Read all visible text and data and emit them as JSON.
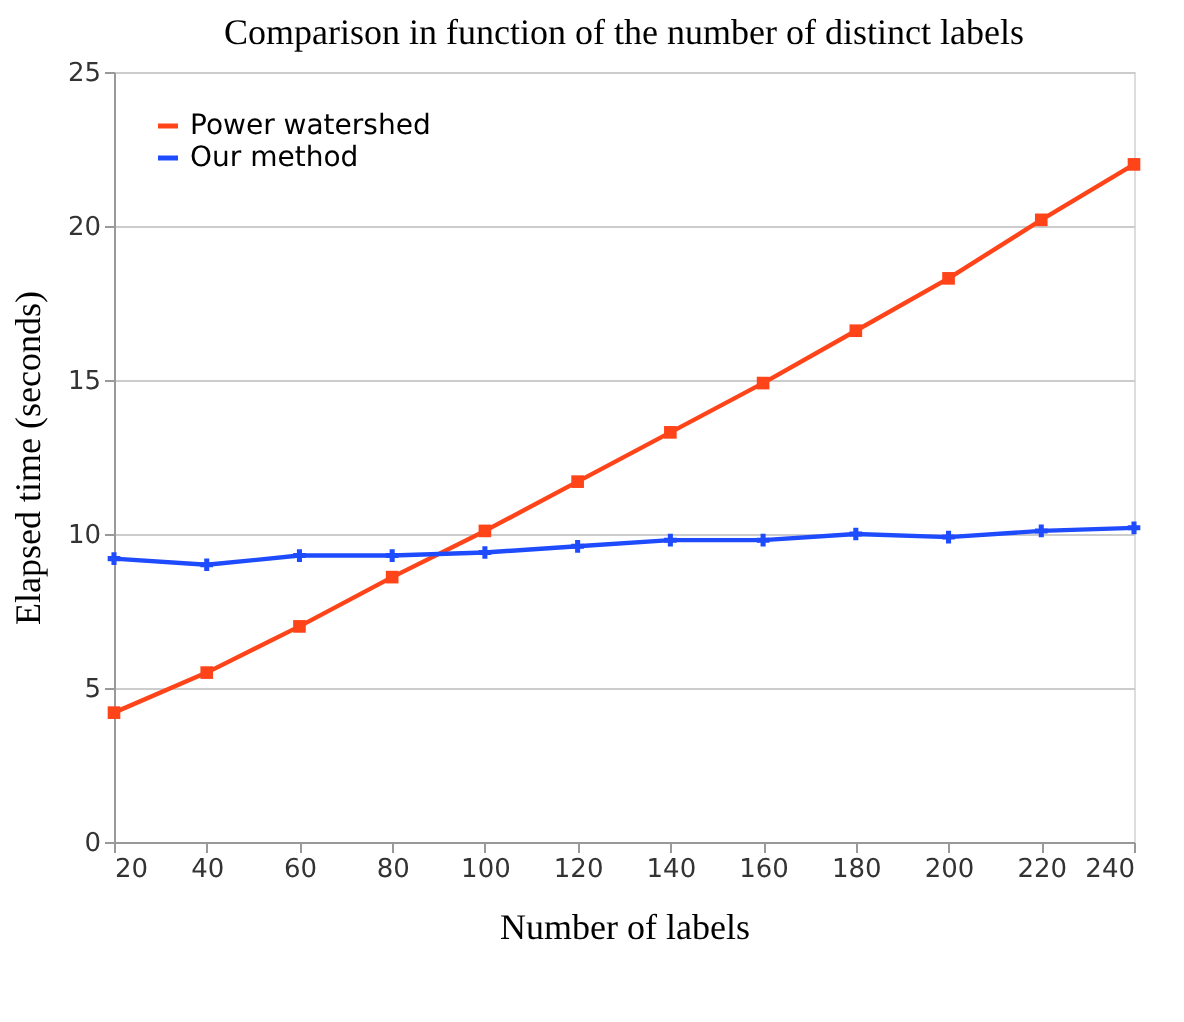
{
  "chart_data": {
    "type": "line",
    "title": "Comparison in function of the number of distinct labels",
    "xlabel": "Number of labels",
    "ylabel": "Elapsed time (seconds)",
    "x": [
      20,
      40,
      60,
      80,
      100,
      120,
      140,
      160,
      180,
      200,
      220,
      240
    ],
    "series": [
      {
        "name": "Power watershed",
        "color": "#ff4419",
        "marker": "square",
        "values": [
          4.2,
          5.5,
          7.0,
          8.6,
          10.1,
          11.7,
          13.3,
          14.9,
          16.6,
          18.3,
          20.2,
          22.0
        ]
      },
      {
        "name": "Our method",
        "color": "#1f4bff",
        "marker": "cross",
        "values": [
          9.2,
          9.0,
          9.3,
          9.3,
          9.4,
          9.6,
          9.8,
          9.8,
          10.0,
          9.9,
          10.1,
          10.2
        ]
      }
    ],
    "xlim": [
      20,
      240
    ],
    "xticks": [
      20,
      40,
      60,
      80,
      100,
      120,
      140,
      160,
      180,
      200,
      220,
      240
    ],
    "ylim": [
      0,
      25
    ],
    "yticks": [
      0,
      5,
      10,
      15,
      20,
      25
    ],
    "grid": "y",
    "legend": "top left",
    "line_style": "solid"
  }
}
